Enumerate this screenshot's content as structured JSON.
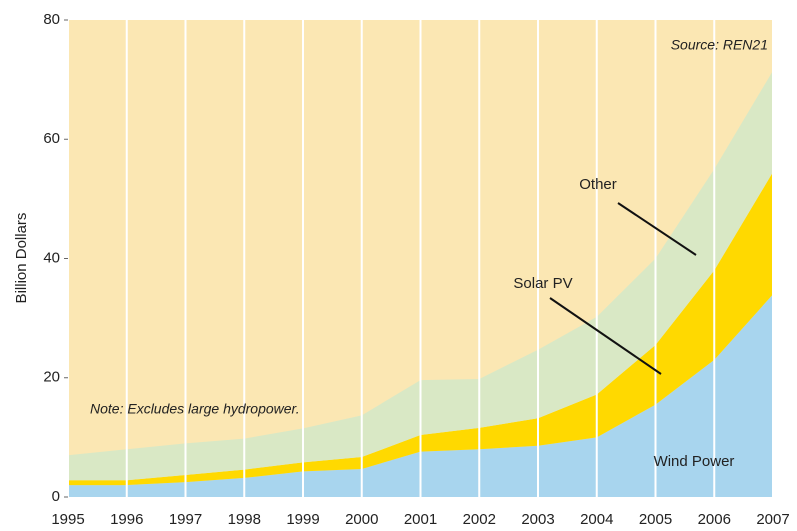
{
  "chart_data": {
    "type": "area",
    "stacked": true,
    "x": [
      1995,
      1996,
      1997,
      1998,
      1999,
      2000,
      2001,
      2002,
      2003,
      2004,
      2005,
      2006,
      2007
    ],
    "xlim": [
      1995,
      2007
    ],
    "xticks": [
      1995,
      1996,
      1997,
      1998,
      1999,
      2000,
      2001,
      2002,
      2003,
      2004,
      2005,
      2006,
      2007
    ],
    "ylim": [
      0,
      80
    ],
    "yticks": [
      0,
      20,
      40,
      60,
      80
    ],
    "y_label": "Billion Dollars",
    "grid": true,
    "series": [
      {
        "name": "Wind Power",
        "color": "#a8d5ee",
        "values": [
          2,
          2,
          2.5,
          3.2,
          4.3,
          4.7,
          7.6,
          8,
          8.6,
          10,
          15.5,
          23,
          34
        ]
      },
      {
        "name": "Solar PV",
        "color": "#ffd900",
        "values": [
          0.8,
          0.8,
          1.2,
          1.4,
          1.5,
          2,
          2.8,
          3.6,
          4.6,
          7.2,
          10,
          15,
          20.5
        ]
      },
      {
        "name": "Other",
        "color": "#d9e8c5",
        "values": [
          4.2,
          5.2,
          5.3,
          5.2,
          5.7,
          7,
          9.2,
          8.2,
          11.5,
          13,
          14.5,
          17,
          17
        ]
      }
    ],
    "annotations": [
      "Source: REN21",
      "Note: Excludes large hydropower."
    ]
  }
}
